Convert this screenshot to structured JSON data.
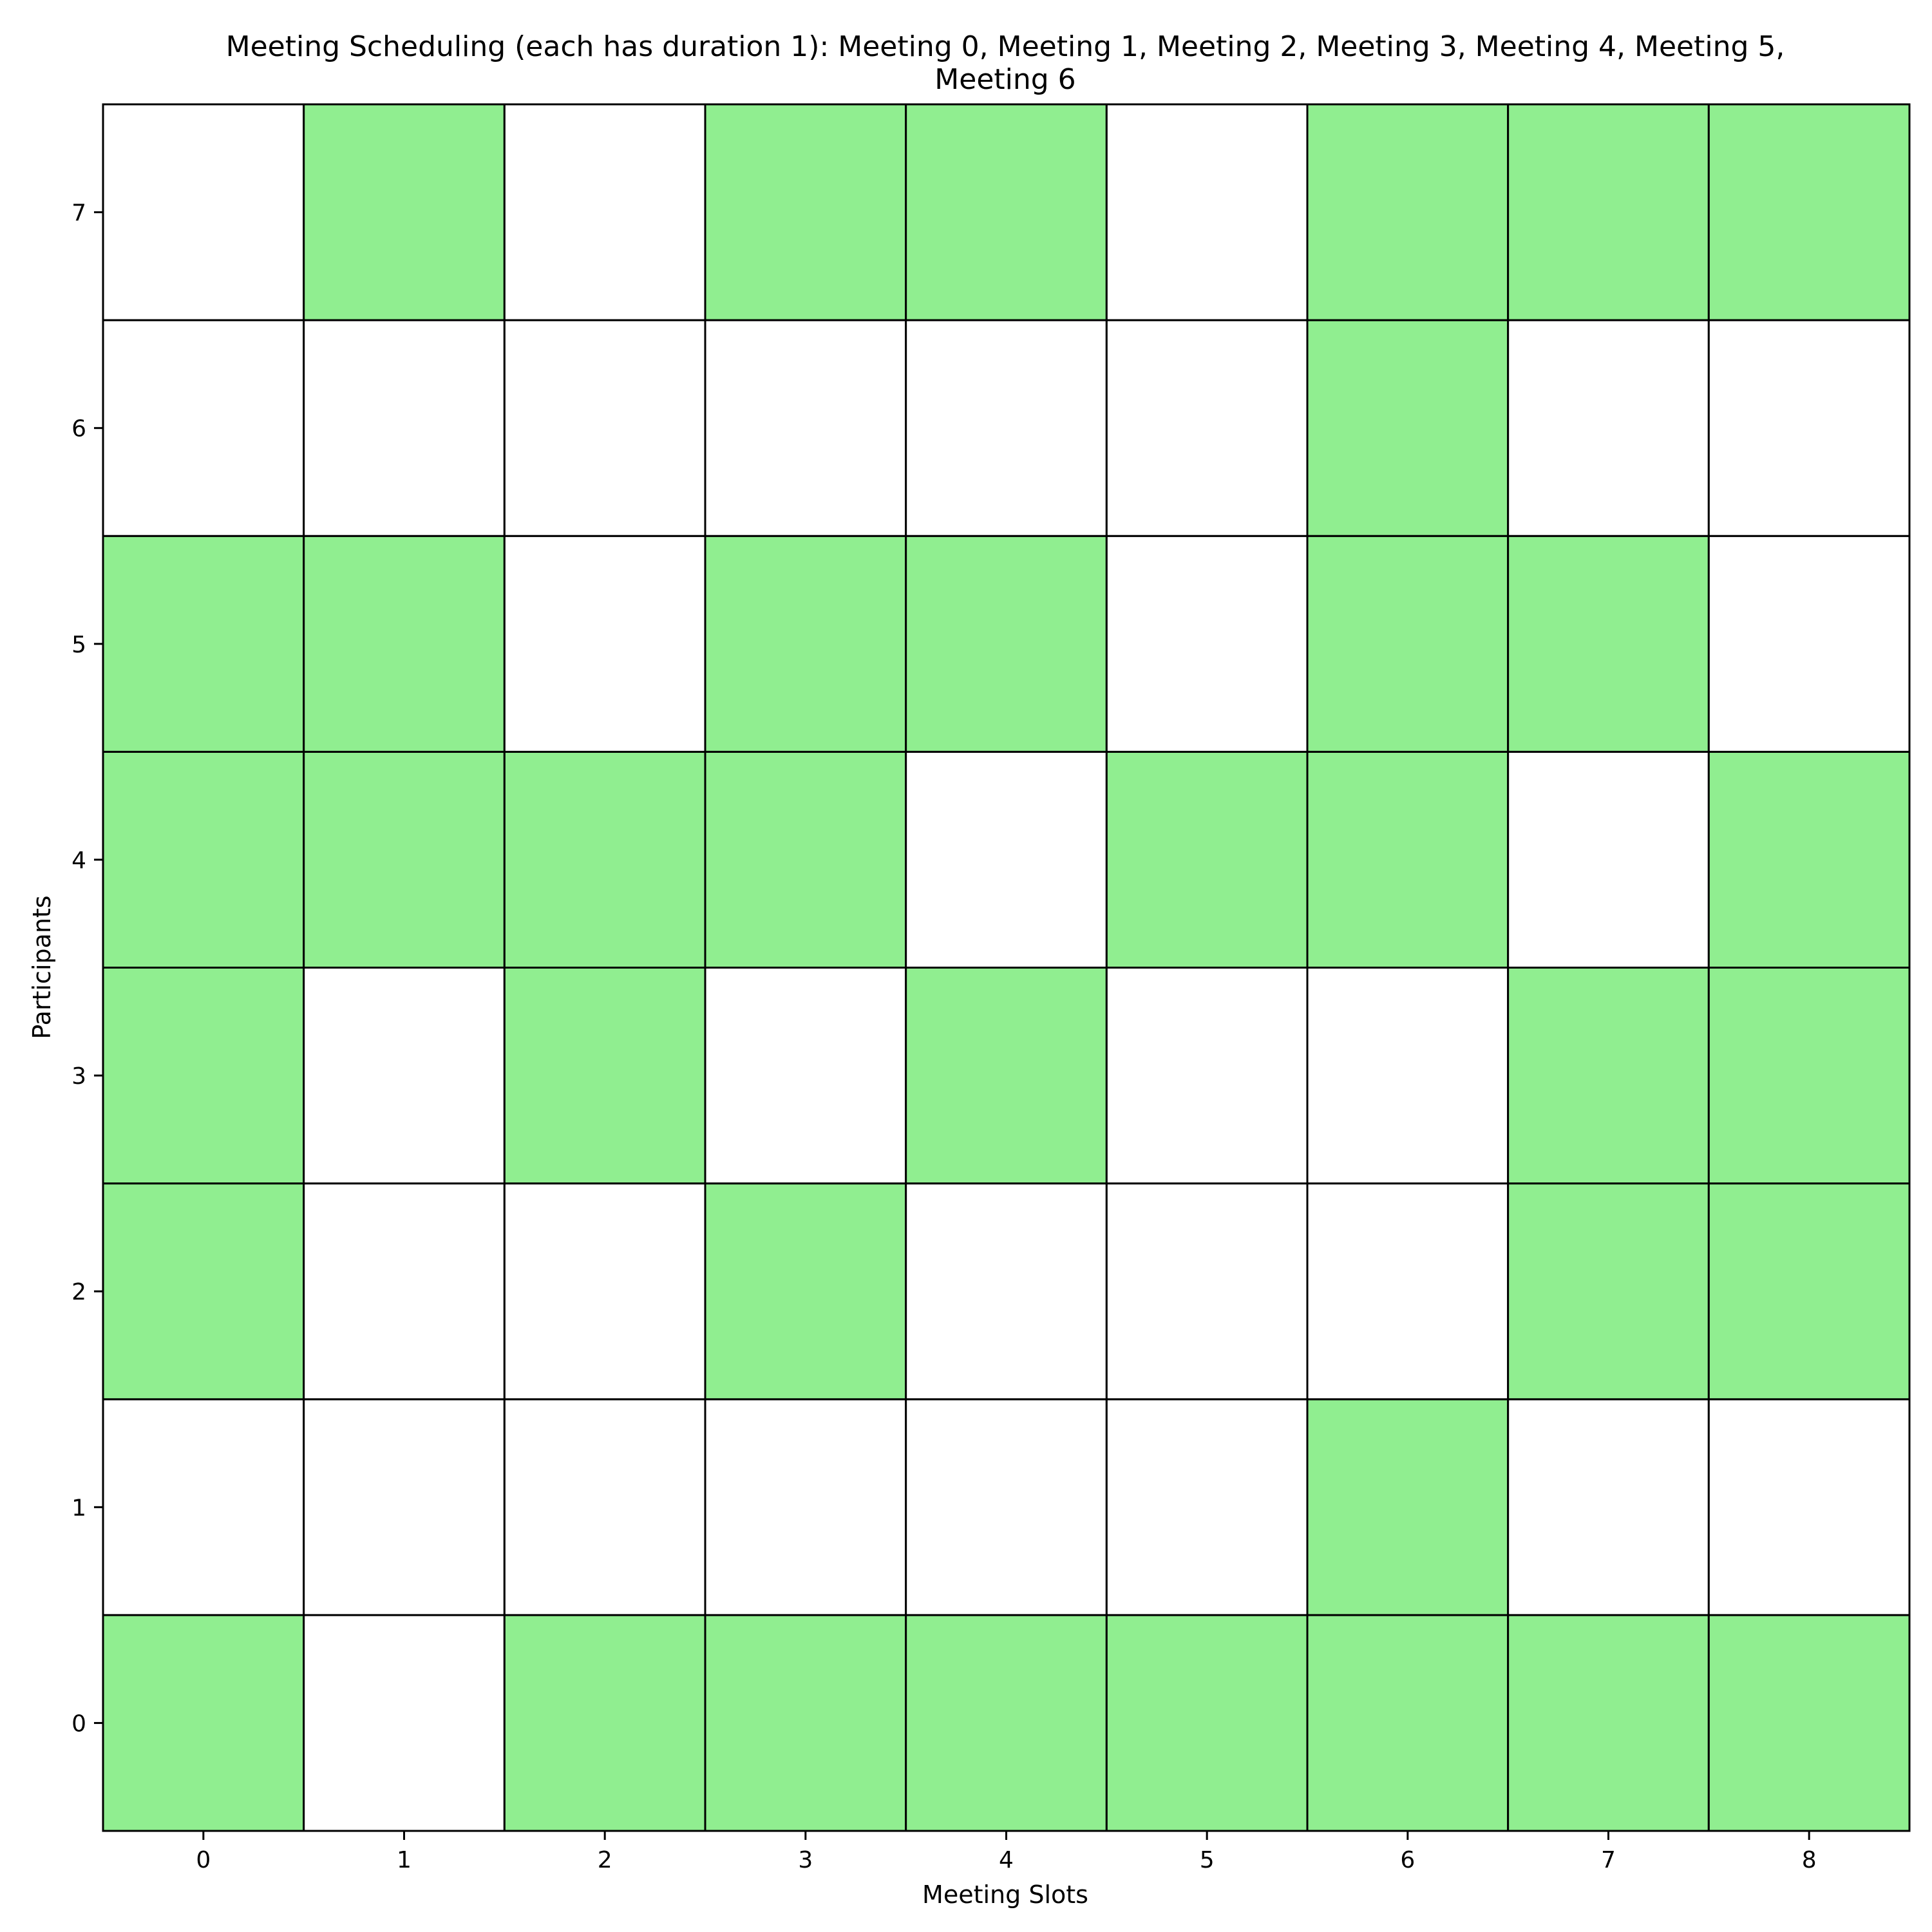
{
  "chart_data": {
    "type": "heatmap",
    "title_lines": [
      "Meeting Scheduling (each has duration 1): Meeting 0, Meeting 1, Meeting 2, Meeting 3, Meeting 4, Meeting 5,",
      "Meeting 6"
    ],
    "xlabel": "Meeting Slots",
    "ylabel": "Participants",
    "x_categories": [
      "0",
      "1",
      "2",
      "3",
      "4",
      "5",
      "6",
      "7",
      "8"
    ],
    "y_categories": [
      "0",
      "1",
      "2",
      "3",
      "4",
      "5",
      "6",
      "7"
    ],
    "grid": true,
    "colors": {
      "available": "#90ee90",
      "unavailable": "#ffffff",
      "edge": "#000000"
    },
    "rows": [
      {
        "participant": "0",
        "values": [
          1,
          0,
          1,
          1,
          1,
          1,
          1,
          1,
          1
        ]
      },
      {
        "participant": "1",
        "values": [
          0,
          0,
          0,
          0,
          0,
          0,
          1,
          0,
          0
        ]
      },
      {
        "participant": "2",
        "values": [
          1,
          0,
          0,
          1,
          0,
          0,
          0,
          1,
          1
        ]
      },
      {
        "participant": "3",
        "values": [
          1,
          0,
          1,
          0,
          1,
          0,
          0,
          1,
          1
        ]
      },
      {
        "participant": "4",
        "values": [
          1,
          1,
          1,
          1,
          0,
          1,
          1,
          0,
          1
        ]
      },
      {
        "participant": "5",
        "values": [
          1,
          1,
          0,
          1,
          1,
          0,
          1,
          1,
          0
        ]
      },
      {
        "participant": "6",
        "values": [
          0,
          0,
          0,
          0,
          0,
          0,
          1,
          0,
          0
        ]
      },
      {
        "participant": "7",
        "values": [
          0,
          1,
          0,
          1,
          1,
          0,
          1,
          1,
          1
        ]
      }
    ]
  }
}
